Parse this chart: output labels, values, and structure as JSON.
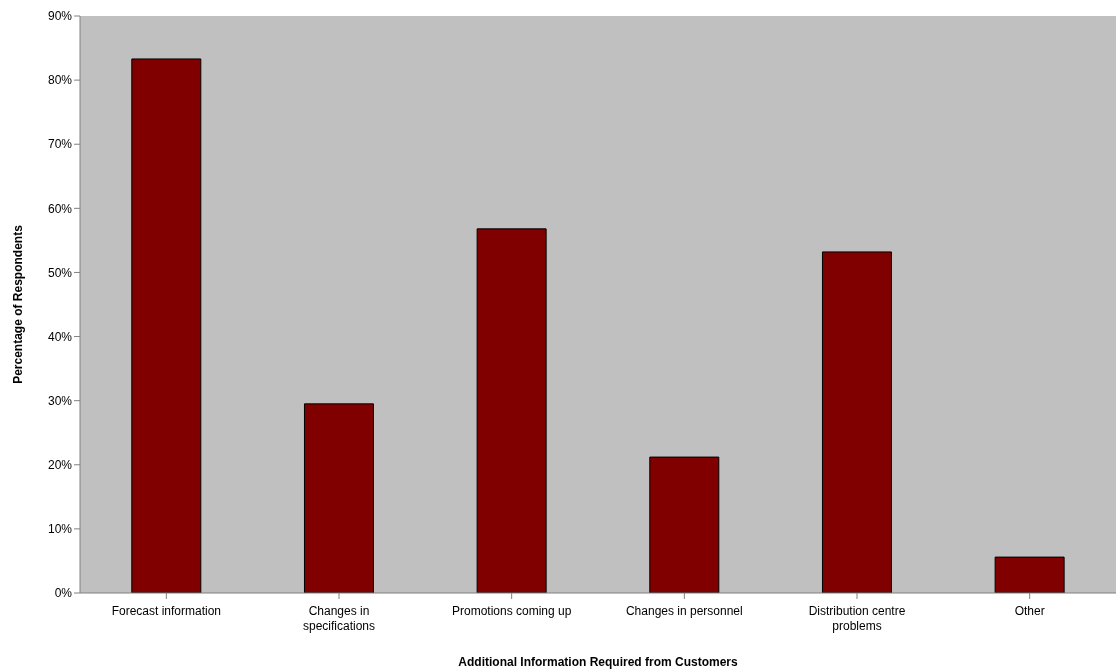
{
  "chart_data": {
    "type": "bar",
    "xlabel": "Additional Information Required from Customers",
    "ylabel": "Percentage of Respondents",
    "categories": [
      "Forecast information",
      "Changes in specifications",
      "Promotions coming up",
      "Changes in personnel",
      "Distribution centre problems",
      "Other"
    ],
    "values": [
      83.3,
      29.5,
      56.8,
      21.2,
      53.2,
      5.6
    ],
    "color": "#800000",
    "ylim": [
      0,
      90
    ],
    "yticks": [
      {
        "value": 0,
        "label": "0%"
      },
      {
        "value": 10,
        "label": "10%"
      },
      {
        "value": 20,
        "label": "20%"
      },
      {
        "value": 30,
        "label": "30%"
      },
      {
        "value": 40,
        "label": "40%"
      },
      {
        "value": 50,
        "label": "50%"
      },
      {
        "value": 60,
        "label": "60%"
      },
      {
        "value": 70,
        "label": "70%"
      },
      {
        "value": 80,
        "label": "80%"
      },
      {
        "value": 90,
        "label": "90%"
      }
    ],
    "grid": false,
    "legend": false
  }
}
